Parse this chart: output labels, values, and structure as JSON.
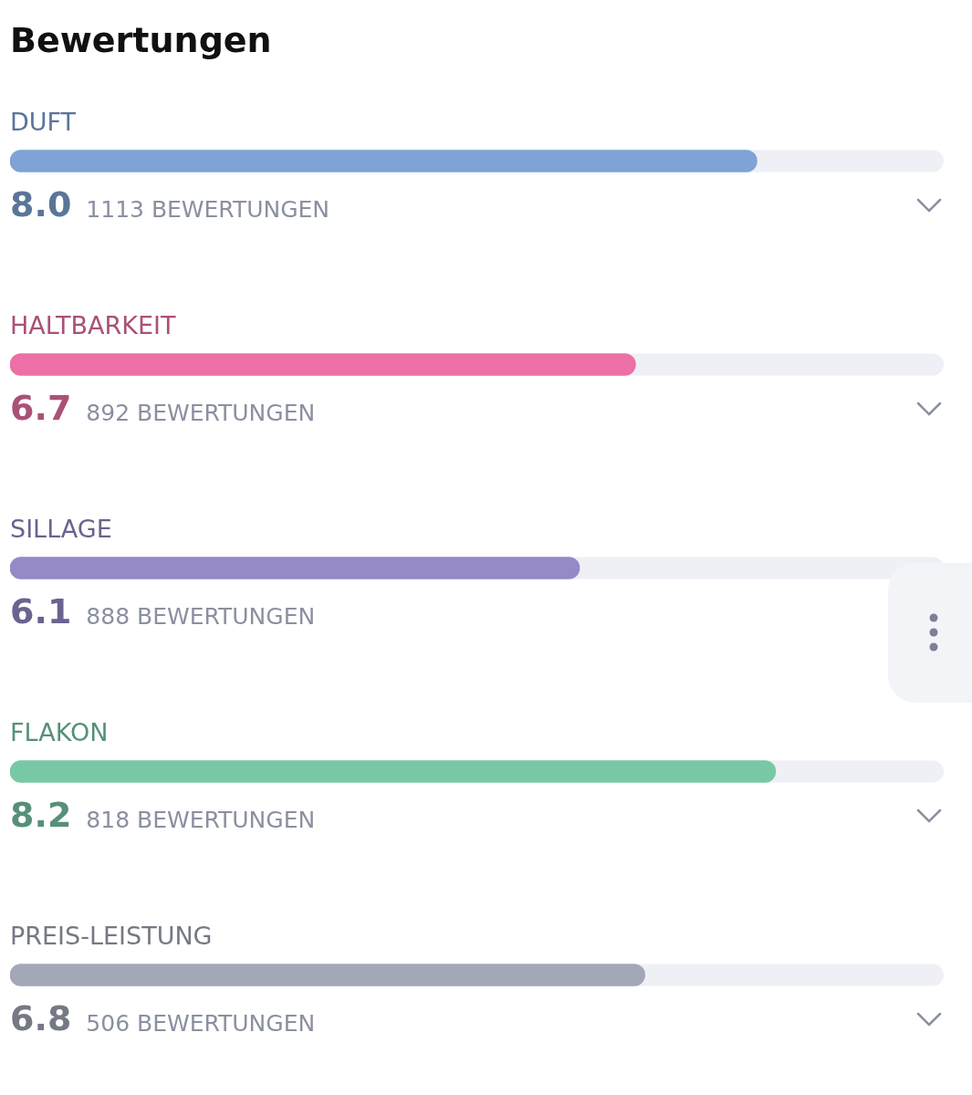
{
  "chart_data": {
    "type": "bar",
    "orientation": "horizontal",
    "title": "Bewertungen",
    "categories": [
      "DUFT",
      "HALTBARKEIT",
      "SILLAGE",
      "FLAKON",
      "PREIS-LEISTUNG"
    ],
    "values": [
      8.0,
      6.7,
      6.1,
      8.2,
      6.8
    ],
    "value_labels": [
      "8.0",
      "6.7",
      "6.1",
      "8.2",
      "6.8"
    ],
    "colors": [
      "#7fa3d4",
      "#ec70a6",
      "#9589c6",
      "#79c8a5",
      "#a3a8b8"
    ],
    "xlim": [
      0,
      10
    ],
    "annotations": [
      "1113 BEWERTUNGEN",
      "892 BEWERTUNGEN",
      "888 BEWERTUNGEN",
      "818 BEWERTUNGEN",
      "506 BEWERTUNGEN"
    ]
  }
}
